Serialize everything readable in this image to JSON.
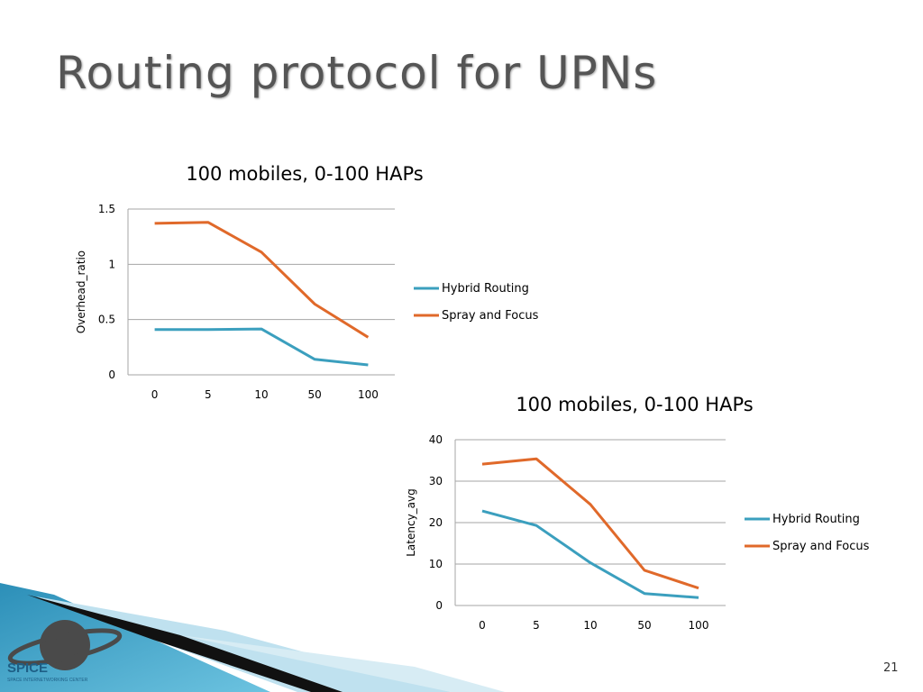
{
  "slide": {
    "title": "Routing protocol for UPNs",
    "page_number": "21"
  },
  "logo": {
    "text": "SPICE",
    "subtext": "SPACE INTERNETWORKING CENTER"
  },
  "colors": {
    "hybrid": "#3b9fbe",
    "spray": "#e0692a",
    "grid": "#a6a6a6",
    "title_text": "#555555"
  },
  "chart_data": [
    {
      "type": "line",
      "title": "100 mobiles, 0-100 HAPs",
      "xlabel": "",
      "ylabel": "Overhead_ratio",
      "categories": [
        "0",
        "5",
        "10",
        "50",
        "100"
      ],
      "ylim": [
        0,
        1.5
      ],
      "yticks": [
        "0",
        "0.5",
        "1",
        "1.5"
      ],
      "grid": true,
      "legend": "right",
      "series": [
        {
          "name": "Hybrid Routing",
          "values": [
            0.41,
            0.41,
            0.415,
            0.14,
            0.09
          ]
        },
        {
          "name": "Spray and Focus",
          "values": [
            1.37,
            1.38,
            1.11,
            0.64,
            0.34
          ]
        }
      ]
    },
    {
      "type": "line",
      "title": "100 mobiles, 0-100 HAPs",
      "xlabel": "",
      "ylabel": "Latency_avg",
      "categories": [
        "0",
        "5",
        "10",
        "50",
        "100"
      ],
      "ylim": [
        0,
        40
      ],
      "yticks": [
        "0",
        "10",
        "20",
        "30",
        "40"
      ],
      "grid": true,
      "legend": "right",
      "series": [
        {
          "name": "Hybrid Routing",
          "values": [
            22.8,
            19.3,
            10.3,
            2.9,
            1.9
          ]
        },
        {
          "name": "Spray and Focus",
          "values": [
            34.1,
            35.4,
            24.4,
            8.5,
            4.2
          ]
        }
      ]
    }
  ]
}
